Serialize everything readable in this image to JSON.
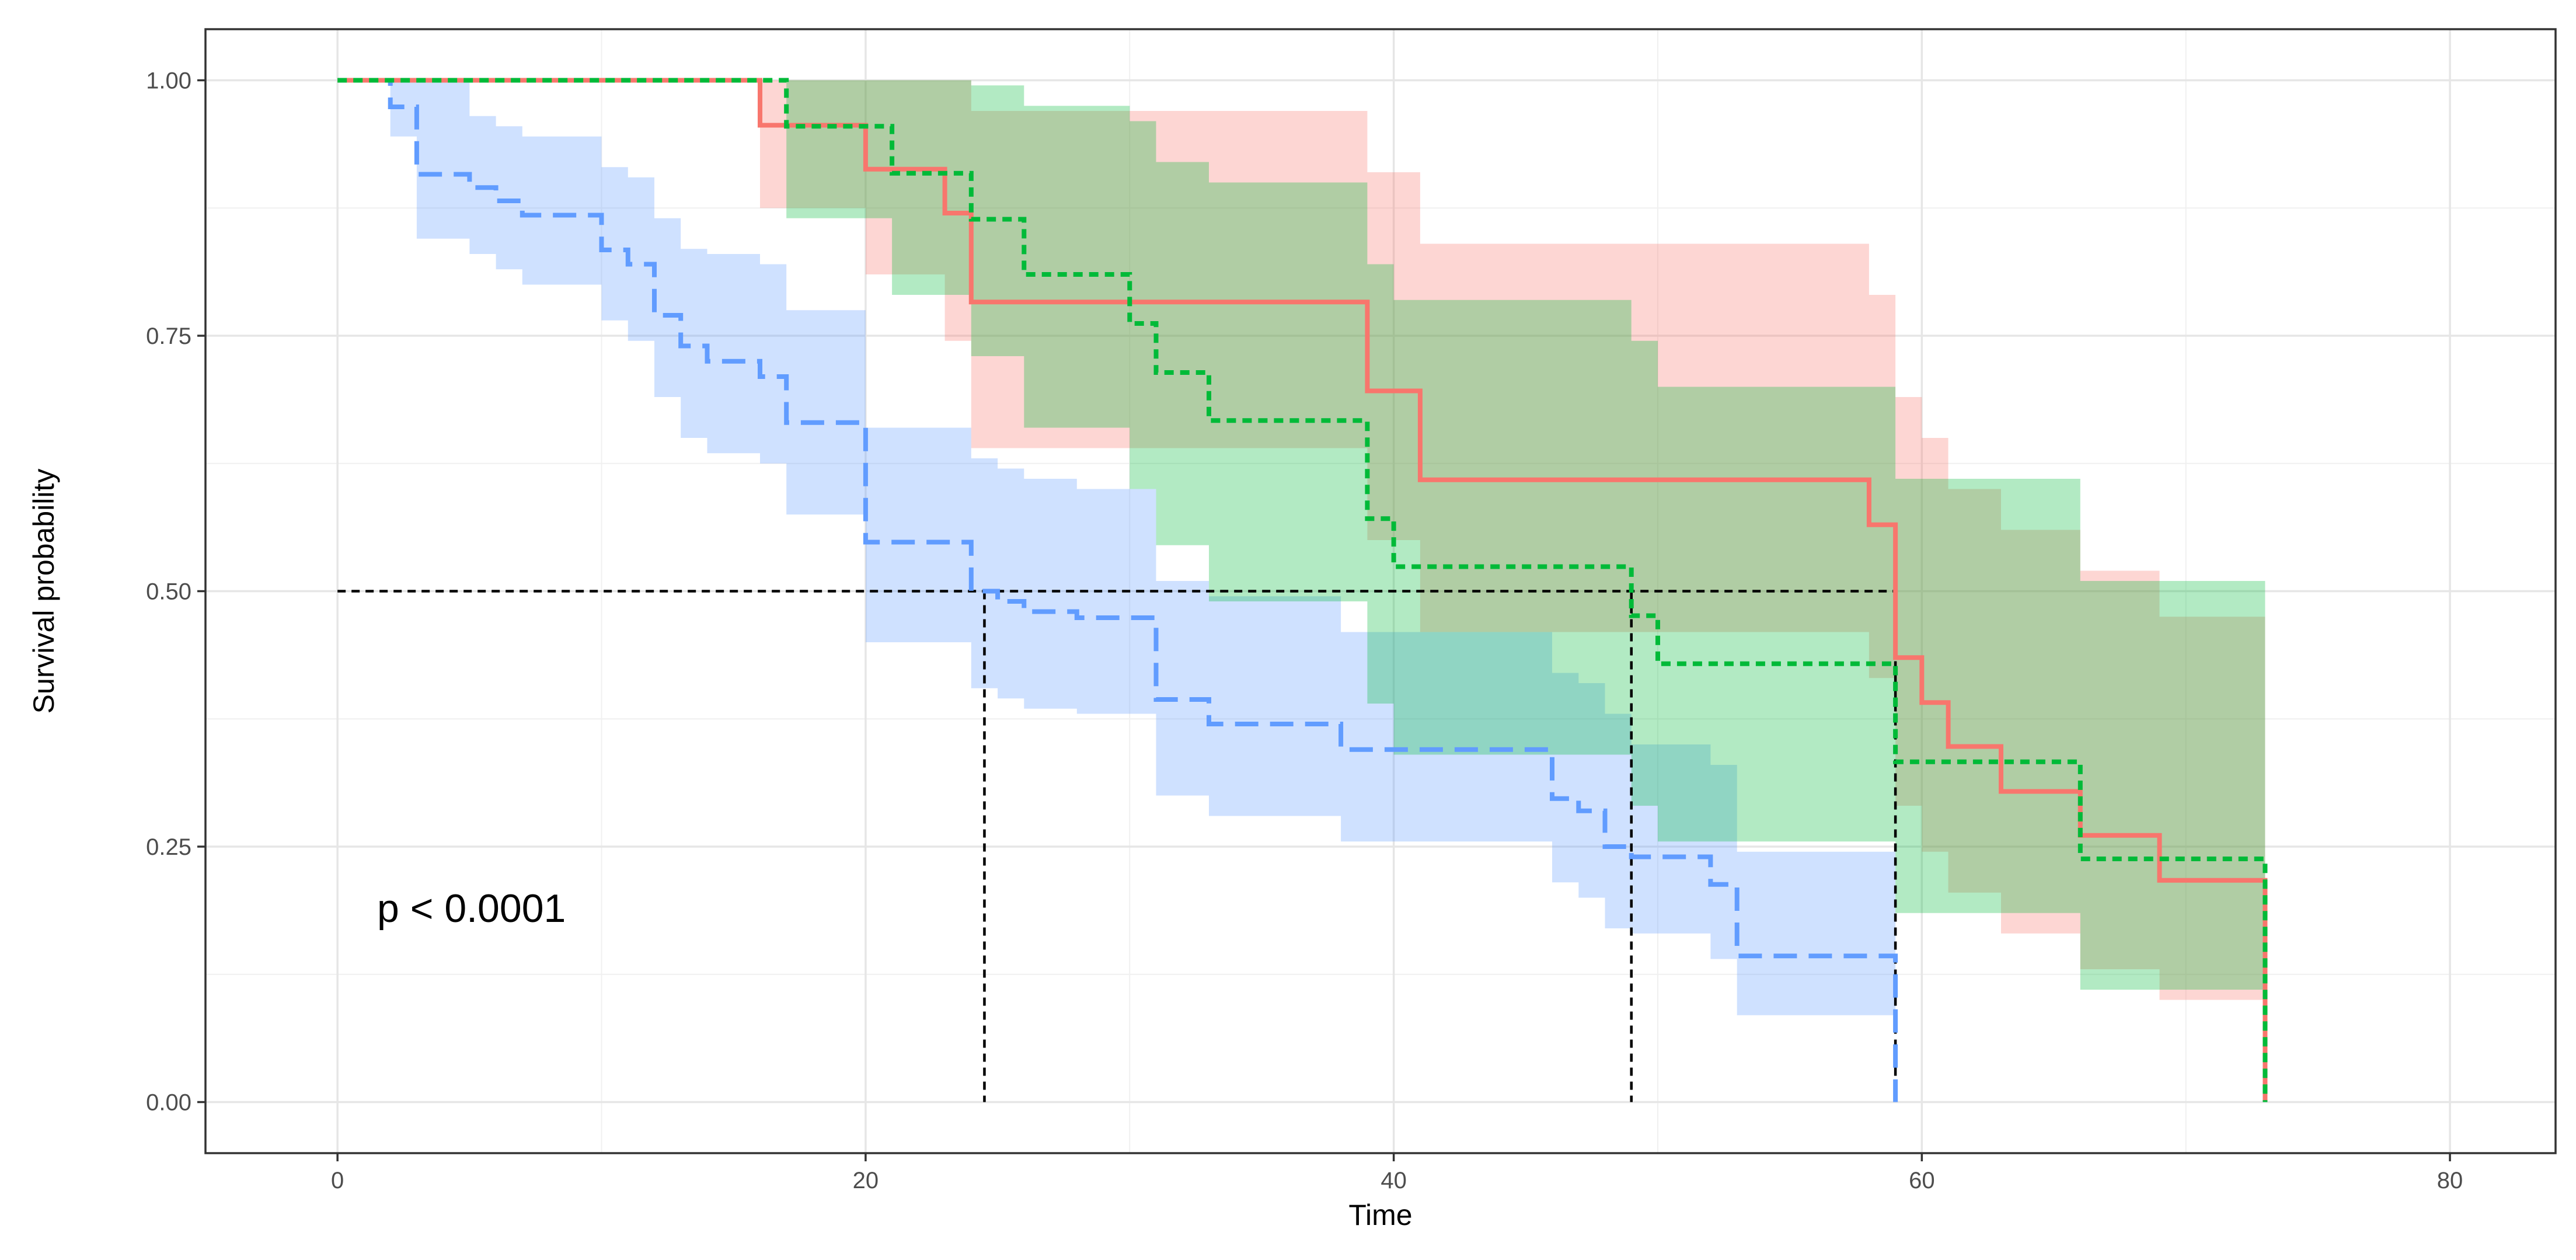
{
  "chart_data": {
    "type": "line",
    "subtype": "kaplan-meier-step",
    "title": "",
    "xlabel": "Time",
    "ylabel": "Survival probability",
    "xlim": [
      -5,
      84
    ],
    "ylim": [
      -0.05,
      1.05
    ],
    "x_ticks": [
      0,
      20,
      40,
      60,
      80
    ],
    "x_tick_labels": [
      "0",
      "20",
      "40",
      "60",
      "80"
    ],
    "y_ticks": [
      0,
      0.25,
      0.5,
      0.75,
      1
    ],
    "y_tick_labels": [
      "0.00",
      "0.25",
      "0.50",
      "0.75",
      "1.00"
    ],
    "grid": true,
    "legend": "none",
    "annotation": {
      "text": "p < 0.0001",
      "x": 1.5,
      "y": 0.19
    },
    "median_lines": {
      "y": 0.5,
      "x_end": 59,
      "medians": [
        24.5,
        49,
        59
      ]
    },
    "series": [
      {
        "name": "blue",
        "color": "#619CFF",
        "band_color": "#619CFF",
        "linestyle": "longdash",
        "x": [
          0,
          2,
          3,
          5,
          6,
          7,
          8,
          10,
          11,
          12,
          13,
          14,
          16,
          17,
          20,
          24,
          25,
          26,
          28,
          31,
          33,
          38,
          46,
          47,
          48,
          49,
          52,
          53,
          59
        ],
        "y": [
          1,
          0.974,
          0.908,
          0.895,
          0.882,
          0.868,
          0.868,
          0.834,
          0.82,
          0.77,
          0.74,
          0.725,
          0.71,
          0.665,
          0.548,
          0.5,
          0.49,
          0.48,
          0.474,
          0.394,
          0.37,
          0.345,
          0.297,
          0.285,
          0.25,
          0.24,
          0.213,
          0.143,
          0.0
        ],
        "upper": [
          1,
          1,
          1,
          0.965,
          0.955,
          0.945,
          0.945,
          0.915,
          0.905,
          0.865,
          0.835,
          0.83,
          0.82,
          0.775,
          0.66,
          0.63,
          0.62,
          0.61,
          0.6,
          0.51,
          0.495,
          0.46,
          0.42,
          0.41,
          0.38,
          0.35,
          0.33,
          0.245,
          0.0
        ],
        "lower": [
          1,
          0.945,
          0.845,
          0.83,
          0.815,
          0.8,
          0.8,
          0.765,
          0.745,
          0.69,
          0.65,
          0.635,
          0.625,
          0.575,
          0.45,
          0.405,
          0.395,
          0.385,
          0.38,
          0.3,
          0.28,
          0.255,
          0.215,
          0.2,
          0.17,
          0.165,
          0.14,
          0.085,
          0.0
        ]
      },
      {
        "name": "red",
        "color": "#F8766D",
        "band_color": "#F8766D",
        "linestyle": "solid",
        "x": [
          0,
          16,
          20,
          23,
          24,
          39,
          41,
          58,
          59,
          60,
          61,
          63,
          66,
          69,
          73
        ],
        "y": [
          1,
          0.956,
          0.913,
          0.87,
          0.783,
          0.696,
          0.609,
          0.565,
          0.435,
          0.391,
          0.348,
          0.304,
          0.261,
          0.217,
          0.0
        ],
        "upper": [
          1,
          1,
          1,
          1,
          0.97,
          0.91,
          0.84,
          0.79,
          0.69,
          0.65,
          0.6,
          0.56,
          0.52,
          0.475,
          0.0
        ],
        "lower": [
          1,
          0.875,
          0.81,
          0.745,
          0.64,
          0.55,
          0.46,
          0.415,
          0.29,
          0.245,
          0.205,
          0.165,
          0.13,
          0.1,
          0.0
        ]
      },
      {
        "name": "green",
        "color": "#00BA38",
        "band_color": "#00BA38",
        "linestyle": "dotted",
        "x": [
          0,
          17,
          21,
          24,
          26,
          30,
          31,
          33,
          39,
          40,
          49,
          50,
          59,
          66,
          73
        ],
        "y": [
          1,
          0.955,
          0.909,
          0.864,
          0.81,
          0.762,
          0.714,
          0.667,
          0.571,
          0.524,
          0.476,
          0.429,
          0.333,
          0.238,
          0.0
        ],
        "upper": [
          1,
          1,
          1,
          0.995,
          0.975,
          0.96,
          0.92,
          0.9,
          0.82,
          0.785,
          0.745,
          0.7,
          0.61,
          0.51,
          0.0
        ],
        "lower": [
          1,
          0.865,
          0.79,
          0.73,
          0.66,
          0.6,
          0.545,
          0.49,
          0.39,
          0.34,
          0.29,
          0.255,
          0.185,
          0.11,
          0.0
        ]
      }
    ]
  }
}
